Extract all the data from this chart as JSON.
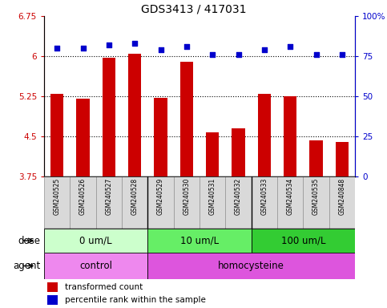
{
  "title": "GDS3413 / 417031",
  "samples": [
    "GSM240525",
    "GSM240526",
    "GSM240527",
    "GSM240528",
    "GSM240529",
    "GSM240530",
    "GSM240531",
    "GSM240532",
    "GSM240533",
    "GSM240534",
    "GSM240535",
    "GSM240848"
  ],
  "bar_values": [
    5.3,
    5.2,
    5.97,
    6.05,
    5.22,
    5.9,
    4.57,
    4.65,
    5.3,
    5.25,
    4.42,
    4.4
  ],
  "dot_values": [
    80,
    80,
    82,
    83,
    79,
    81,
    76,
    76,
    79,
    81,
    76,
    76
  ],
  "ylim": [
    3.75,
    6.75
  ],
  "y2lim": [
    0,
    100
  ],
  "yticks": [
    3.75,
    4.5,
    5.25,
    6.0,
    6.75
  ],
  "ytick_labels": [
    "3.75",
    "4.5",
    "5.25",
    "6",
    "6.75"
  ],
  "y2ticks": [
    0,
    25,
    50,
    75,
    100
  ],
  "y2tick_labels": [
    "0",
    "25",
    "50",
    "75",
    "100%"
  ],
  "hlines": [
    4.5,
    5.25,
    6.0
  ],
  "bar_color": "#cc0000",
  "dot_color": "#0000cc",
  "bar_width": 0.5,
  "dose_groups": [
    {
      "label": "0 um/L",
      "start": 0,
      "end": 4,
      "color": "#ccffcc"
    },
    {
      "label": "10 um/L",
      "start": 4,
      "end": 8,
      "color": "#66ee66"
    },
    {
      "label": "100 um/L",
      "start": 8,
      "end": 12,
      "color": "#33cc33"
    }
  ],
  "agent_groups": [
    {
      "label": "control",
      "start": 0,
      "end": 4,
      "color": "#ee88ee"
    },
    {
      "label": "homocysteine",
      "start": 4,
      "end": 12,
      "color": "#dd55dd"
    }
  ],
  "dose_label": "dose",
  "agent_label": "agent",
  "legend_bar_label": "transformed count",
  "legend_dot_label": "percentile rank within the sample",
  "title_fontsize": 10,
  "tick_fontsize": 7.5,
  "sample_fontsize": 5.5,
  "row_fontsize": 8.5,
  "legend_fontsize": 7.5,
  "axis_label_color_left": "#cc0000",
  "axis_label_color_right": "#0000cc",
  "n_samples": 12,
  "group_separators": [
    3.5,
    7.5
  ]
}
